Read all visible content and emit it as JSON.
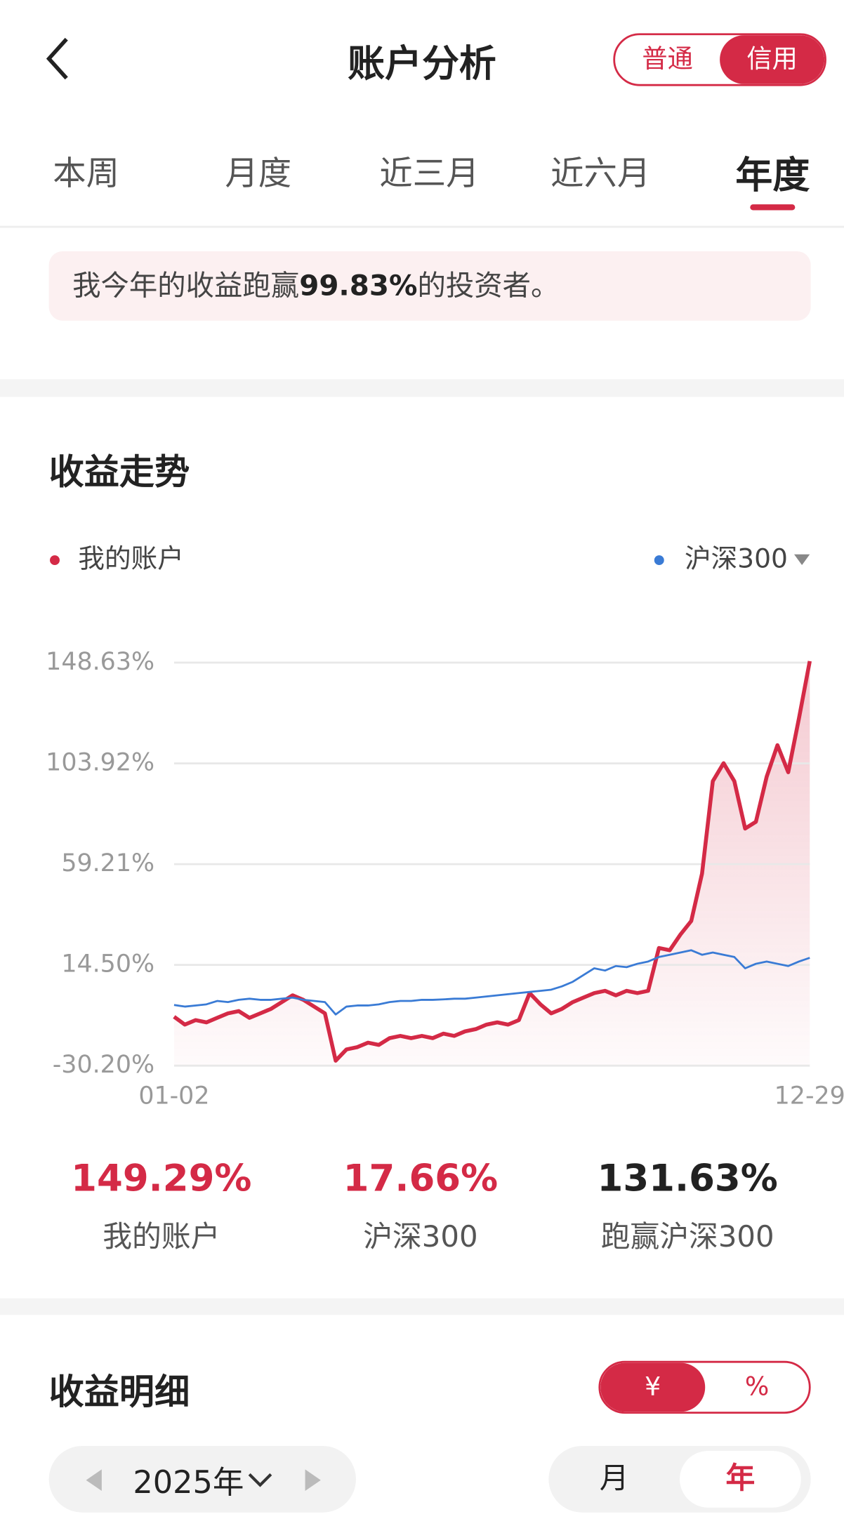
{
  "header": {
    "title": "账户分析",
    "toggle": [
      "普通",
      "信用"
    ]
  },
  "tabs": [
    "本周",
    "月度",
    "近三月",
    "近六月",
    "年度"
  ],
  "banner": {
    "prefix": "我今年的收益跑赢",
    "value": "99.83%",
    "suffix": "的投资者。"
  },
  "trend": {
    "title": "收益走势",
    "chart_data": {
      "type": "line",
      "categories": [
        "01-02",
        null,
        null,
        null,
        null,
        null,
        null,
        null,
        null,
        null,
        null,
        null,
        null,
        null,
        null,
        null,
        null,
        null,
        null,
        null,
        null,
        null,
        null,
        null,
        null,
        null,
        null,
        null,
        null,
        null,
        null,
        null,
        null,
        null,
        null,
        null,
        null,
        null,
        null,
        null,
        null,
        null,
        null,
        null,
        null,
        null,
        null,
        null,
        null,
        null,
        null,
        null,
        null,
        null,
        null,
        null,
        null,
        null,
        null,
        "12-29"
      ],
      "series": [
        {
          "name": "我的账户",
          "color": "#d42a46",
          "values": [
            -8.5,
            -12,
            -10,
            -11,
            -9,
            -7,
            -6,
            -9,
            -7,
            -5,
            -2,
            1,
            -1,
            -4,
            -7,
            -28,
            -23,
            -22,
            -20,
            -21,
            -18,
            -17,
            -18,
            -17,
            -18,
            -16,
            -17,
            -15,
            -14,
            -12,
            -11,
            -12,
            -10,
            2,
            -3,
            -7,
            -5,
            -2,
            0,
            2,
            3,
            1,
            3,
            2,
            3,
            22,
            21,
            28,
            34,
            55,
            96,
            104,
            96,
            75,
            78,
            98,
            112,
            100,
            124,
            149.29
          ]
        },
        {
          "name": "沪深300",
          "color": "#3a7bd5",
          "values": [
            -3.3,
            -4,
            -3.5,
            -3,
            -1.5,
            -2,
            -1,
            -0.5,
            -1,
            -1,
            -0.5,
            0,
            -1,
            -1.5,
            -2,
            -7.5,
            -4,
            -3.5,
            -3.5,
            -3,
            -2,
            -1.5,
            -1.5,
            -1,
            -1,
            -0.8,
            -0.5,
            -0.5,
            0,
            0.5,
            1,
            1.5,
            2,
            2.5,
            3,
            3.5,
            5,
            7,
            10,
            13,
            12,
            14,
            13.5,
            15,
            16,
            18,
            19,
            20,
            21,
            19,
            20,
            19,
            18,
            13,
            15,
            16,
            15,
            14,
            16,
            17.66
          ]
        }
      ],
      "ylim": [
        -30.2,
        152
      ],
      "yticks": [
        {
          "value": -30.2,
          "label": "-30.20%"
        },
        {
          "value": 14.5,
          "label": "14.50%"
        },
        {
          "value": 59.21,
          "label": "59.21%"
        },
        {
          "value": 103.92,
          "label": "103.92%"
        },
        {
          "value": 148.63,
          "label": "148.63%"
        }
      ],
      "grid": true
    }
  },
  "summary": [
    {
      "value": "149.29%",
      "label": "我的账户"
    },
    {
      "value": "17.66%",
      "label": "沪深300"
    },
    {
      "value": "131.63%",
      "label": "跑赢沪深300"
    }
  ],
  "detail": {
    "title": "收益明细",
    "unit_toggle": [
      "¥",
      "%"
    ],
    "year": "2025年",
    "period_toggle": [
      "月",
      "年"
    ]
  }
}
